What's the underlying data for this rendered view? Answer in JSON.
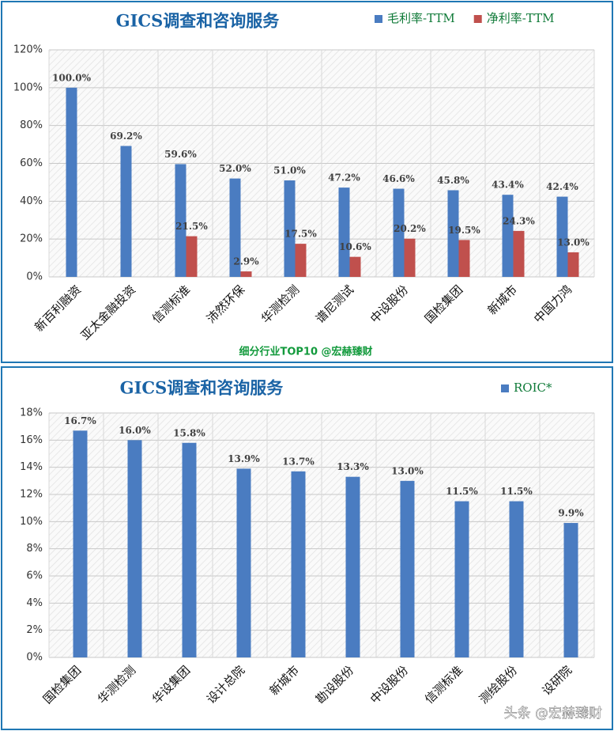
{
  "chart_data": [
    {
      "type": "bar",
      "title": "GICS调查和咨询服务",
      "categories": [
        "新百利融资",
        "亚太金融投资",
        "信测标准",
        "沛然环保",
        "华测检测",
        "谱尼测试",
        "中设股份",
        "国检集团",
        "新城市",
        "中国力鸿"
      ],
      "series": [
        {
          "name": "毛利率-TTM",
          "color": "#4a7cc1",
          "values": [
            100.0,
            69.2,
            59.6,
            52.0,
            51.0,
            47.2,
            46.6,
            45.8,
            43.4,
            42.4
          ],
          "value_labels": [
            "100.0%",
            "69.2%",
            "59.6%",
            "52.0%",
            "51.0%",
            "47.2%",
            "46.6%",
            "45.8%",
            "43.4%",
            "42.4%"
          ]
        },
        {
          "name": "净利率-TTM",
          "color": "#c0504d",
          "values": [
            null,
            null,
            21.5,
            2.9,
            17.5,
            10.6,
            20.2,
            19.5,
            24.3,
            13.0
          ],
          "value_labels": [
            null,
            null,
            "21.5%",
            "2.9%",
            "17.5%",
            "10.6%",
            "20.2%",
            "19.5%",
            "24.3%",
            "13.0%"
          ]
        }
      ],
      "ylim": [
        0,
        120
      ],
      "yticks": [
        {
          "value": 0,
          "label": "0%"
        },
        {
          "value": 20,
          "label": "20%"
        },
        {
          "value": 40,
          "label": "40%"
        },
        {
          "value": 60,
          "label": "60%"
        },
        {
          "value": 80,
          "label": "80%"
        },
        {
          "value": 100,
          "label": "100%"
        },
        {
          "value": 120,
          "label": "120%"
        }
      ],
      "grid": true,
      "legend": "top-right",
      "annotation": "细分行业TOP10 @宏赫臻财"
    },
    {
      "type": "bar",
      "title": "GICS调查和咨询服务",
      "categories": [
        "国检集团",
        "华测检测",
        "华设集团",
        "设计总院",
        "新城市",
        "勘设股份",
        "中设股份",
        "信测标准",
        "测绘股份",
        "设研院"
      ],
      "series": [
        {
          "name": "ROIC*",
          "color": "#4a7cc1",
          "values": [
            16.7,
            16.0,
            15.8,
            13.9,
            13.7,
            13.3,
            13.0,
            11.5,
            11.5,
            9.9
          ],
          "value_labels": [
            "16.7%",
            "16.0%",
            "15.8%",
            "13.9%",
            "13.7%",
            "13.3%",
            "13.0%",
            "11.5%",
            "11.5%",
            "9.9%"
          ]
        }
      ],
      "ylim": [
        0,
        18
      ],
      "yticks": [
        {
          "value": 0,
          "label": "0%"
        },
        {
          "value": 2,
          "label": "2%"
        },
        {
          "value": 4,
          "label": "4%"
        },
        {
          "value": 6,
          "label": "6%"
        },
        {
          "value": 8,
          "label": "8%"
        },
        {
          "value": 10,
          "label": "10%"
        },
        {
          "value": 12,
          "label": "12%"
        },
        {
          "value": 14,
          "label": "14%"
        },
        {
          "value": 16,
          "label": "16%"
        },
        {
          "value": 18,
          "label": "18%"
        }
      ],
      "grid": true,
      "legend": "top-right",
      "watermark": "头条 @宏赫臻财"
    }
  ]
}
